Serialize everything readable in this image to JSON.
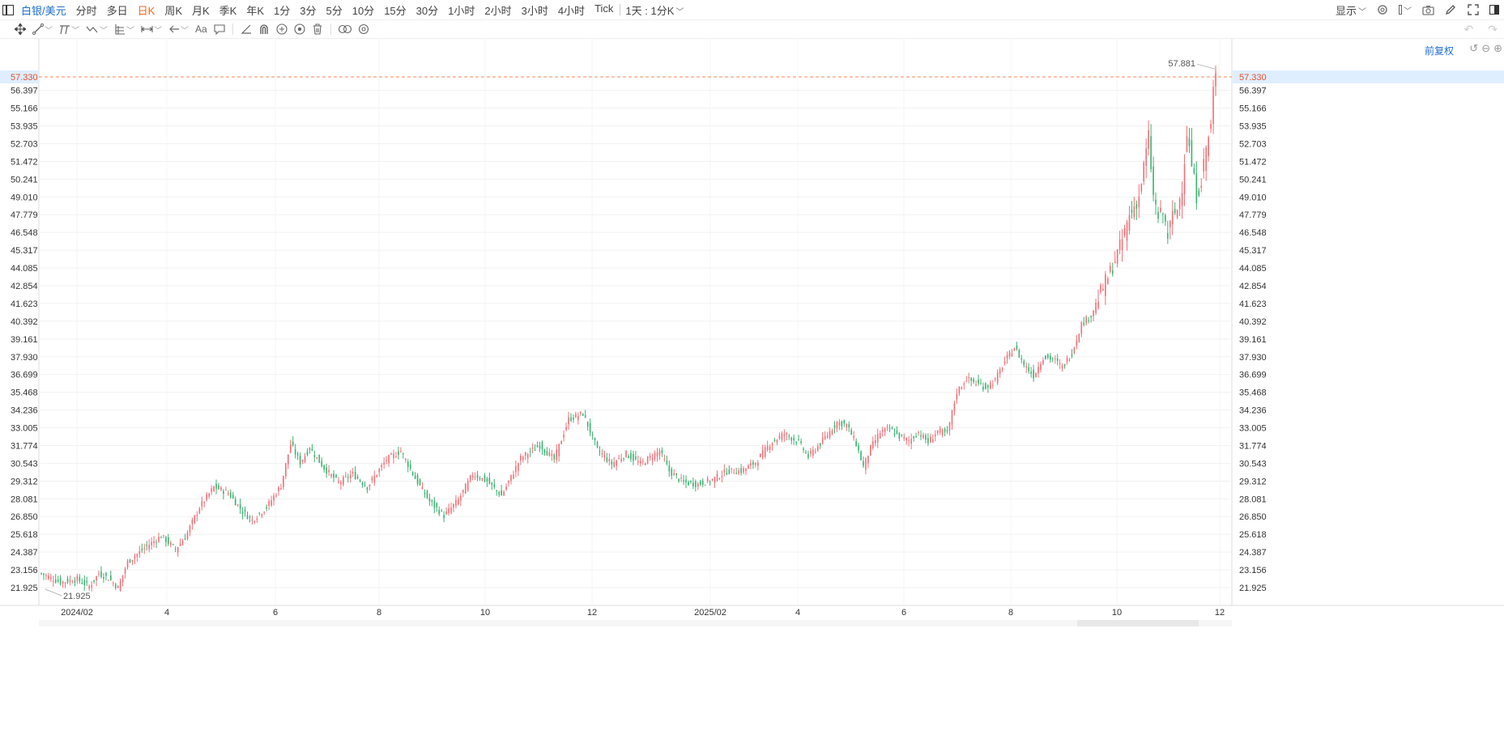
{
  "topbar": {
    "symbol": "白银/美元",
    "periods": [
      "分时",
      "多日",
      "日K",
      "周K",
      "月K",
      "季K",
      "年K",
      "1分",
      "3分",
      "5分",
      "10分",
      "15分",
      "30分",
      "1小时",
      "2小时",
      "3小时",
      "4小时",
      "Tick"
    ],
    "active_period": "日K",
    "range_select": "1天 : 1分K",
    "display_menu": "显示"
  },
  "drawbar": {
    "tools": [
      "move-icon",
      "line-icon",
      "channel-icon",
      "wave-icon",
      "fib-icon",
      "measure-icon",
      "arrow-icon",
      "text-icon",
      "comment-icon",
      "angle-icon",
      "magnet-icon",
      "lock-icon",
      "eye-icon",
      "delete-icon",
      "compare-icon",
      "settings-icon"
    ],
    "text_tool_label": "Aa"
  },
  "chart_controls": {
    "adjust_label": "前复权"
  },
  "colors": {
    "up": "#f07178",
    "down": "#3cb371",
    "current_line": "#f28a5b",
    "highlight": "#dfeeff",
    "accent": "#1f6fd1",
    "active": "#f06a1c"
  },
  "chart_data": {
    "type": "candlestick",
    "y_ticks": [
      "21.925",
      "23.156",
      "24.387",
      "25.618",
      "26.850",
      "28.081",
      "29.312",
      "30.543",
      "31.774",
      "33.005",
      "34.236",
      "35.468",
      "36.699",
      "37.930",
      "39.161",
      "40.392",
      "41.623",
      "42.854",
      "44.085",
      "45.317",
      "46.548",
      "47.779",
      "49.010",
      "50.241",
      "51.472",
      "52.703",
      "53.935",
      "55.166",
      "56.397"
    ],
    "x_ticks": [
      "2024/02",
      "4",
      "6",
      "8",
      "10",
      "12",
      "2025/02",
      "4",
      "6",
      "8",
      "10",
      "12"
    ],
    "current_price": "57.330",
    "high_label": "57.881",
    "low_label": "21.925",
    "ylim": [
      21.5,
      58.3
    ],
    "anchors": [
      [
        0,
        22.9
      ],
      [
        8,
        22.3
      ],
      [
        15,
        22.5
      ],
      [
        20,
        22.0
      ],
      [
        24,
        22.9
      ],
      [
        28,
        22.6
      ],
      [
        32,
        21.9
      ],
      [
        36,
        23.7
      ],
      [
        44,
        24.8
      ],
      [
        50,
        25.5
      ],
      [
        56,
        24.6
      ],
      [
        60,
        25.4
      ],
      [
        66,
        27.5
      ],
      [
        72,
        28.9
      ],
      [
        78,
        28.5
      ],
      [
        84,
        27.2
      ],
      [
        88,
        26.6
      ],
      [
        94,
        27.5
      ],
      [
        100,
        29.0
      ],
      [
        104,
        31.9
      ],
      [
        108,
        30.6
      ],
      [
        112,
        31.6
      ],
      [
        118,
        30.2
      ],
      [
        124,
        29.2
      ],
      [
        130,
        29.8
      ],
      [
        136,
        28.9
      ],
      [
        144,
        30.8
      ],
      [
        150,
        31.4
      ],
      [
        156,
        29.5
      ],
      [
        162,
        27.9
      ],
      [
        168,
        26.9
      ],
      [
        174,
        28.0
      ],
      [
        180,
        29.8
      ],
      [
        186,
        29.3
      ],
      [
        192,
        28.3
      ],
      [
        200,
        30.9
      ],
      [
        208,
        31.8
      ],
      [
        214,
        30.8
      ],
      [
        220,
        33.6
      ],
      [
        226,
        34.0
      ],
      [
        232,
        31.5
      ],
      [
        238,
        30.5
      ],
      [
        244,
        31.2
      ],
      [
        250,
        30.5
      ],
      [
        258,
        31.4
      ],
      [
        262,
        30.0
      ],
      [
        268,
        29.2
      ],
      [
        274,
        29.1
      ],
      [
        280,
        29.4
      ],
      [
        286,
        30.0
      ],
      [
        292,
        30.0
      ],
      [
        298,
        30.6
      ],
      [
        304,
        31.9
      ],
      [
        310,
        32.6
      ],
      [
        316,
        32.0
      ],
      [
        320,
        31.0
      ],
      [
        326,
        32.1
      ],
      [
        332,
        33.4
      ],
      [
        336,
        33.2
      ],
      [
        340,
        31.9
      ],
      [
        343,
        30.3
      ],
      [
        346,
        31.6
      ],
      [
        350,
        32.7
      ],
      [
        354,
        32.9
      ],
      [
        358,
        32.4
      ],
      [
        362,
        32.1
      ],
      [
        366,
        32.7
      ],
      [
        370,
        32.0
      ],
      [
        374,
        32.8
      ],
      [
        378,
        32.6
      ],
      [
        382,
        35.5
      ],
      [
        386,
        36.4
      ],
      [
        390,
        36.1
      ],
      [
        394,
        35.8
      ],
      [
        398,
        36.3
      ],
      [
        402,
        37.6
      ],
      [
        406,
        38.6
      ],
      [
        410,
        37.4
      ],
      [
        414,
        36.6
      ],
      [
        418,
        37.9
      ],
      [
        422,
        37.8
      ],
      [
        426,
        37.2
      ],
      [
        430,
        38.2
      ],
      [
        434,
        40.2
      ],
      [
        438,
        40.8
      ],
      [
        442,
        42.4
      ],
      [
        446,
        43.8
      ],
      [
        450,
        45.5
      ],
      [
        454,
        47.7
      ],
      [
        458,
        49.0
      ],
      [
        462,
        53.2
      ],
      [
        464,
        49.0
      ],
      [
        466,
        47.6
      ],
      [
        468,
        47.9
      ],
      [
        470,
        46.3
      ],
      [
        472,
        47.7
      ],
      [
        474,
        48.1
      ],
      [
        476,
        49.8
      ],
      [
        478,
        53.5
      ],
      [
        480,
        51.2
      ],
      [
        482,
        49.1
      ],
      [
        484,
        50.2
      ],
      [
        486,
        52.4
      ],
      [
        488,
        53.9
      ],
      [
        489,
        56.4
      ],
      [
        490,
        57.33
      ]
    ]
  }
}
